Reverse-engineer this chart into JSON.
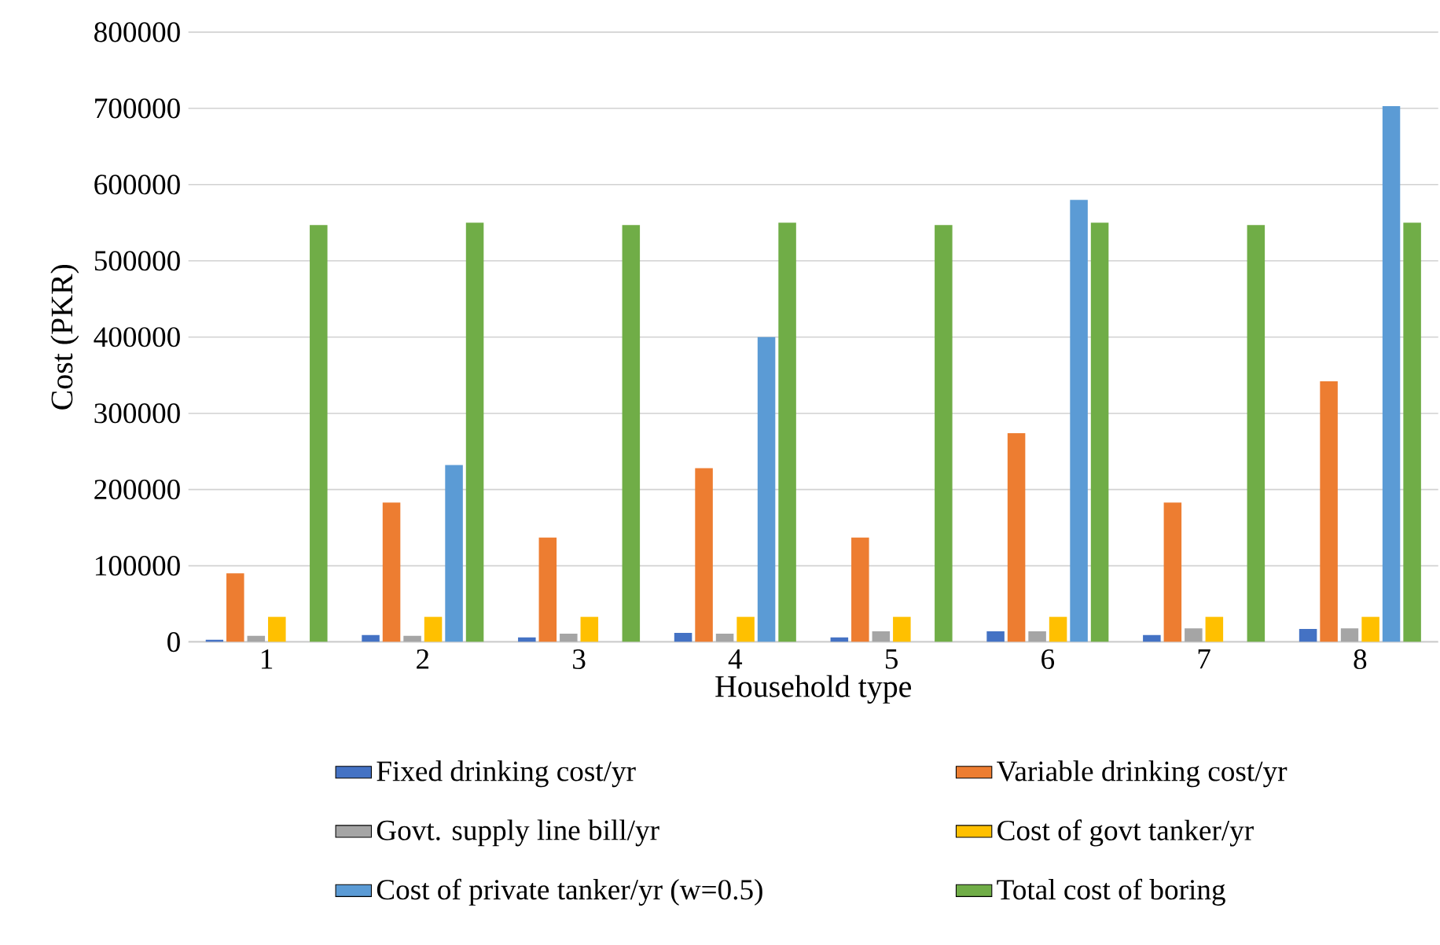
{
  "chart_data": {
    "type": "bar",
    "xlabel": "Household type",
    "ylabel": "Cost (PKR)",
    "categories": [
      "1",
      "2",
      "3",
      "4",
      "5",
      "6",
      "7",
      "8"
    ],
    "series": [
      {
        "name": "Fixed drinking cost/yr",
        "color": "#4472c4",
        "values": [
          3000,
          9000,
          6000,
          12000,
          6000,
          14000,
          9000,
          17000
        ]
      },
      {
        "name": "Variable drinking cost/yr",
        "color": "#ed7d31",
        "values": [
          90000,
          183000,
          137000,
          228000,
          137000,
          274000,
          183000,
          342000
        ]
      },
      {
        "name": "Govt. supply line bill/yr",
        "color": "#a5a5a5",
        "values": [
          8000,
          8000,
          11000,
          11000,
          14000,
          14000,
          18000,
          18000
        ]
      },
      {
        "name": "Cost of govt tanker/yr",
        "color": "#ffc000",
        "values": [
          33000,
          33000,
          33000,
          33000,
          33000,
          33000,
          33000,
          33000
        ]
      },
      {
        "name": "Cost of private tanker/yr (w=0.5)",
        "color": "#5b9bd5",
        "values": [
          null,
          232000,
          null,
          400000,
          null,
          580000,
          null,
          703000
        ]
      },
      {
        "name": "Total cost of boring",
        "color": "#70ad47",
        "values": [
          547000,
          550000,
          547000,
          550000,
          547000,
          550000,
          547000,
          550000
        ]
      }
    ],
    "ylim": [
      0,
      800000
    ],
    "yticks": [
      0,
      100000,
      200000,
      300000,
      400000,
      500000,
      600000,
      700000,
      800000
    ],
    "grid": "y",
    "legend": "bottom"
  }
}
